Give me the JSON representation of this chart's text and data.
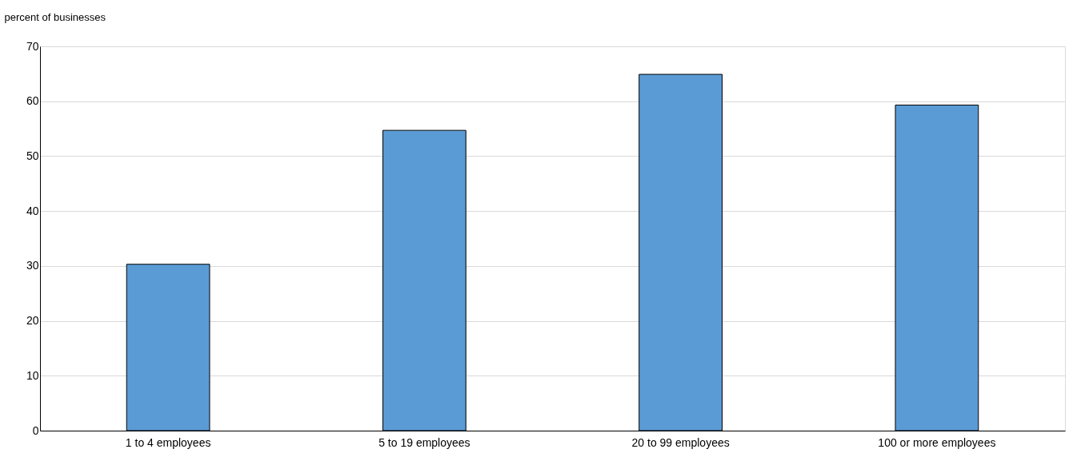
{
  "chart_data": {
    "type": "bar",
    "ylabel": "percent of businesses",
    "categories": [
      "1 to 4 employees",
      "5 to 19 employees",
      "20 to 99 employees",
      "100 or more employees"
    ],
    "values": [
      30.3,
      54.7,
      64.9,
      59.3
    ],
    "color": "#5b9bd5",
    "ylim": [
      0,
      70
    ],
    "yticks": [
      0,
      10,
      20,
      30,
      40,
      50,
      60,
      70
    ],
    "grid": "y"
  }
}
